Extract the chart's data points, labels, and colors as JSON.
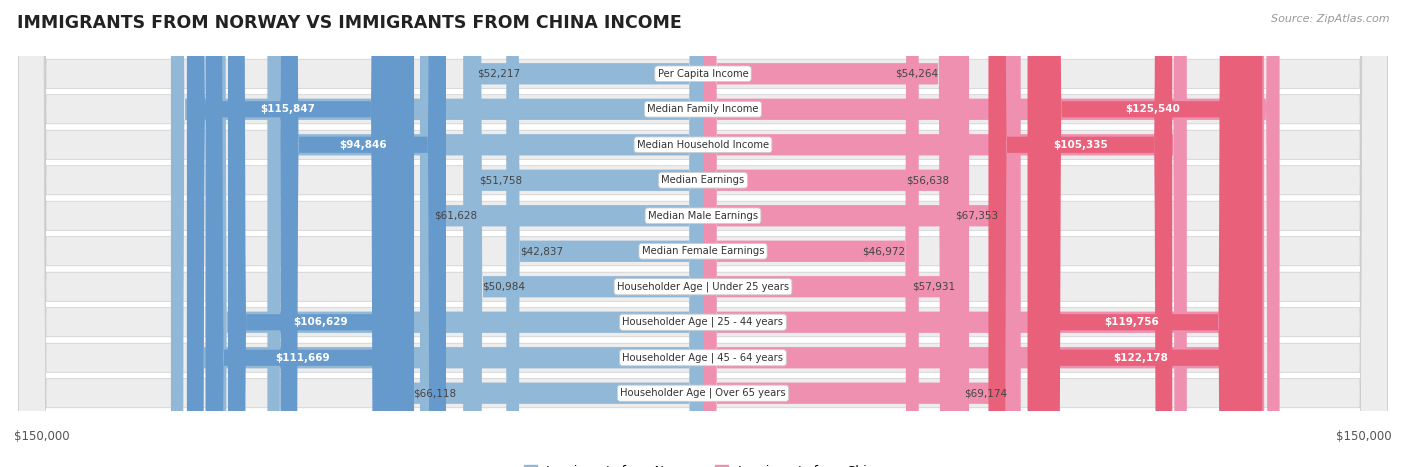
{
  "title": "IMMIGRANTS FROM NORWAY VS IMMIGRANTS FROM CHINA INCOME",
  "source": "Source: ZipAtlas.com",
  "categories": [
    "Per Capita Income",
    "Median Family Income",
    "Median Household Income",
    "Median Earnings",
    "Median Male Earnings",
    "Median Female Earnings",
    "Householder Age | Under 25 years",
    "Householder Age | 25 - 44 years",
    "Householder Age | 45 - 64 years",
    "Householder Age | Over 65 years"
  ],
  "norway_values": [
    52217,
    115847,
    94846,
    51758,
    61628,
    42837,
    50984,
    106629,
    111669,
    66118
  ],
  "china_values": [
    54264,
    125540,
    105335,
    56638,
    67353,
    46972,
    57931,
    119756,
    122178,
    69174
  ],
  "norway_color": "#92b8d8",
  "china_color": "#f090b0",
  "norway_badge_color": "#6699cc",
  "china_badge_color": "#e8607a",
  "norway_legend_color": "#92b8d8",
  "china_legend_color": "#f090b0",
  "max_value": 150000,
  "background_color": "#ffffff",
  "row_bg_color": "#ededee",
  "white_threshold": 75000
}
